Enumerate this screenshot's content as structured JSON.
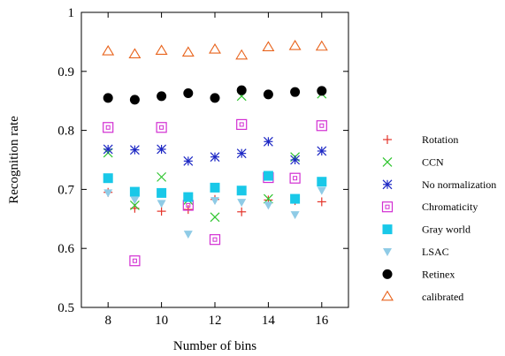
{
  "chart_data": {
    "type": "scatter",
    "title": "",
    "xlabel": "Number of bins",
    "ylabel": "Recognition rate",
    "xlim": [
      7,
      17
    ],
    "ylim": [
      0.5,
      1.0
    ],
    "x_ticks": [
      8,
      10,
      12,
      14,
      16
    ],
    "y_ticks": [
      0.5,
      0.6,
      0.7,
      0.8,
      0.9,
      1.0
    ],
    "y_tick_labels": [
      "0.5",
      "0.6",
      "0.7",
      "0.8",
      "0.9",
      "1"
    ],
    "grid": false,
    "legend_position": "right",
    "x": [
      8,
      9,
      10,
      11,
      12,
      13,
      14,
      15,
      16
    ],
    "series": [
      {
        "name": "Rotation",
        "marker": "plus",
        "color": "#e4342a",
        "values": [
          0.695,
          0.668,
          0.663,
          0.666,
          0.683,
          0.662,
          0.682,
          0.681,
          0.679
        ]
      },
      {
        "name": "CCN",
        "marker": "x",
        "color": "#2fc52f",
        "values": [
          0.762,
          0.673,
          0.721,
          0.682,
          0.653,
          0.858,
          0.684,
          0.755,
          0.862
        ]
      },
      {
        "name": "No normalization",
        "marker": "star",
        "color": "#1c27c4",
        "values": [
          0.768,
          0.767,
          0.768,
          0.748,
          0.755,
          0.761,
          0.781,
          0.75,
          0.765
        ]
      },
      {
        "name": "Chromaticity",
        "marker": "open-square",
        "color": "#d22ed2",
        "values": [
          0.805,
          0.579,
          0.805,
          0.673,
          0.615,
          0.81,
          0.72,
          0.719,
          0.808
        ]
      },
      {
        "name": "Gray world",
        "marker": "filled-square",
        "color": "#19c8e8",
        "values": [
          0.719,
          0.696,
          0.694,
          0.687,
          0.703,
          0.698,
          0.723,
          0.684,
          0.713
        ]
      },
      {
        "name": "LSAC",
        "marker": "down-triangle",
        "color": "#8fcbe6",
        "values": [
          0.694,
          0.682,
          0.676,
          0.624,
          0.681,
          0.678,
          0.673,
          0.657,
          0.698
        ]
      },
      {
        "name": "Retinex",
        "marker": "filled-circle",
        "color": "#000000",
        "values": [
          0.855,
          0.852,
          0.858,
          0.863,
          0.855,
          0.868,
          0.861,
          0.865,
          0.867
        ]
      },
      {
        "name": "calibrated",
        "marker": "open-triangle",
        "color": "#e8631c",
        "values": [
          0.934,
          0.929,
          0.935,
          0.932,
          0.937,
          0.927,
          0.941,
          0.943,
          0.942
        ]
      }
    ]
  }
}
